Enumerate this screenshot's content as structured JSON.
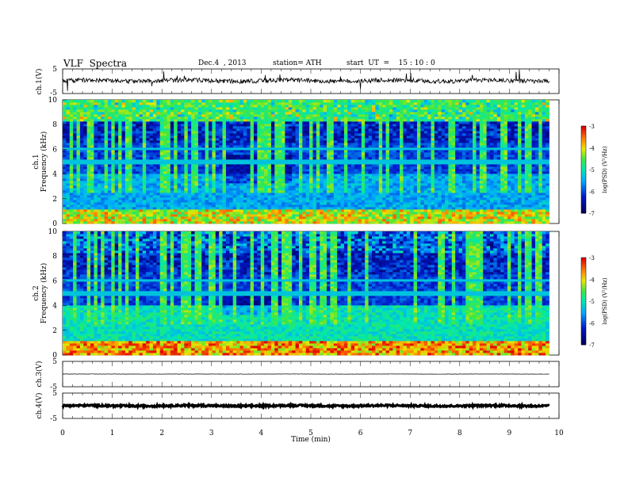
{
  "header": {
    "title": "VLF  Spectra",
    "date": "Dec.4  , 2013",
    "station": "station= ATH",
    "start": "start  UT  =    15 : 10 : 0"
  },
  "colors": {
    "spectrum_low": "#0b0f6e",
    "spectrum_mid": "#18c8c0",
    "spectrum_high": "#ff2a00",
    "trace": "#000000"
  },
  "chart_data": [
    {
      "id": "ch1-waveform",
      "type": "line",
      "ylabel": "ch.1(V)",
      "ylim": [
        -5,
        5
      ],
      "yticks": [
        "5",
        "-5"
      ],
      "xlim": [
        0,
        10
      ],
      "last_x": 9.8,
      "level": 0.2,
      "noise": 0.9
    },
    {
      "id": "ch1-spectrogram",
      "type": "heatmap",
      "ylabel": "Frequency  (kHz)",
      "channel_label": "ch.1",
      "ylim": [
        0,
        10
      ],
      "yticks": [
        "0",
        "2",
        "4",
        "6",
        "8",
        "10"
      ],
      "xlim": [
        0,
        10
      ],
      "last_x": 9.8,
      "colorbar": {
        "label": "log(PSD) (V²/Hz)",
        "range": [
          -7,
          -3
        ],
        "ticks": [
          "-3",
          "-4",
          "-5",
          "-6",
          "-7"
        ]
      },
      "quiet_band_khz": [
        3.3,
        5.6
      ],
      "quiet_band_time_min": [
        3.25,
        4.6
      ]
    },
    {
      "id": "ch2-spectrogram",
      "type": "heatmap",
      "ylabel": "Frequency  (kHz)",
      "channel_label": "ch.2",
      "ylim": [
        0,
        10
      ],
      "yticks": [
        "0",
        "2",
        "4",
        "6",
        "8",
        "10"
      ],
      "xlim": [
        0,
        10
      ],
      "last_x": 9.8,
      "colorbar": {
        "label": "log(PSD) (V²/Hz)",
        "range": [
          -7,
          -3
        ],
        "ticks": [
          "-3",
          "-4",
          "-5",
          "-6",
          "-7"
        ]
      },
      "quiet_band_khz": [
        3.3,
        5.0
      ],
      "quiet_band_time_min": [
        3.25,
        4.6
      ]
    },
    {
      "id": "ch3-waveform",
      "type": "line",
      "ylabel": "ch.3(V)",
      "ylim": [
        -5,
        5
      ],
      "yticks": [
        "5",
        "-5"
      ],
      "xlim": [
        0,
        10
      ],
      "last_x": 9.8,
      "level": 0.0,
      "noise": 0.05
    },
    {
      "id": "ch4-waveform",
      "type": "line",
      "ylabel": "ch.4(V)",
      "ylim": [
        -5,
        5
      ],
      "yticks": [
        "5",
        "-5"
      ],
      "xlim": [
        0,
        10
      ],
      "last_x": 9.8,
      "level": 0.0,
      "noise": 0.35
    }
  ],
  "x_axis": {
    "label": "Time  (min)",
    "ticks": [
      "0",
      "1",
      "2",
      "3",
      "4",
      "5",
      "6",
      "7",
      "8",
      "9",
      "10"
    ]
  }
}
